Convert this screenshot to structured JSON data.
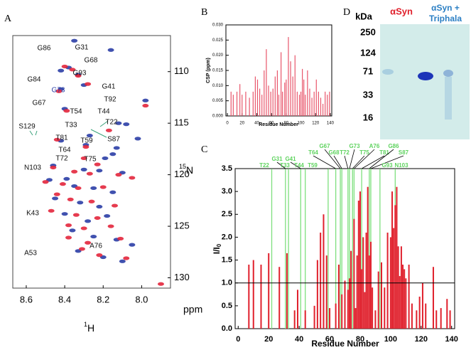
{
  "panels": [
    "A",
    "B",
    "C",
    "D"
  ],
  "chart_data": [
    {
      "type": "scatter",
      "xlabel": "ppm",
      "xnucleus_mass": "1",
      "xnucleus": "H",
      "ynucleus_mass": "15",
      "ynucleus": "N",
      "xlim": [
        8.67,
        7.85
      ],
      "ylim": [
        131,
        106.5
      ],
      "xticks": [
        {
          "value": 8.6,
          "label": "8.6"
        },
        {
          "value": 8.4,
          "label": "8.4"
        },
        {
          "value": 8.2,
          "label": "8.2"
        },
        {
          "value": 8.0,
          "label": "8.0"
        }
      ],
      "yticks": [
        110,
        115,
        120,
        125,
        130
      ],
      "peak_labels": [
        "G86",
        "G31",
        "G68",
        "G93",
        "G84",
        "G73",
        "G41",
        "T92",
        "G67",
        "T54",
        "T44",
        "T33",
        "T22",
        "S129",
        "S87",
        "T59",
        "T81",
        "T64",
        "T72",
        "T75",
        "N103",
        "K43",
        "A76",
        "A53"
      ],
      "series": [
        {
          "color": "#2b3ea6",
          "x": [
            8.35,
            8.16,
            8.38,
            8.42,
            8.33,
            8.3,
            8.42,
            7.98,
            8.4,
            8.12,
            8.27,
            8.13,
            8.02,
            8.08,
            8.15,
            8.19,
            8.46,
            8.3,
            8.22,
            8.1,
            8.48,
            8.39,
            8.35,
            8.25,
            8.15,
            8.45,
            8.32,
            8.22,
            8.4,
            8.28,
            8.18,
            8.36,
            8.25,
            8.13,
            8.05,
            8.33,
            8.2,
            8.1,
            8.42,
            8.29
          ],
          "values": [
            107.0,
            107.9,
            109.6,
            109.9,
            110.3,
            111.3,
            111.7,
            112.8,
            113.6,
            115.0,
            116.2,
            117.4,
            116.5,
            115.1,
            118.0,
            118.4,
            119.1,
            119.5,
            119.6,
            119.8,
            120.5,
            120.4,
            121.1,
            121.3,
            121.7,
            122.3,
            122.7,
            123.1,
            123.8,
            124.5,
            124.0,
            125.4,
            126.0,
            126.3,
            126.8,
            127.4,
            128.0,
            128.4,
            116.7,
            117.1
          ]
        },
        {
          "color": "#e3263c",
          "x": [
            8.4,
            8.36,
            8.33,
            8.28,
            8.43,
            7.98,
            8.39,
            8.17,
            8.3,
            8.23,
            8.46,
            8.35,
            8.27,
            8.12,
            8.5,
            8.41,
            8.33,
            8.2,
            8.05,
            8.44,
            8.37,
            8.26,
            8.14,
            8.47,
            8.34,
            8.23,
            8.38,
            8.3,
            8.16,
            8.38,
            8.28,
            8.11,
            8.31,
            8.22,
            8.08,
            7.9,
            8.44,
            8.29
          ],
          "values": [
            109.5,
            109.8,
            110.4,
            111.2,
            111.9,
            113.3,
            113.8,
            115.7,
            118.4,
            119.0,
            119.3,
            119.7,
            119.9,
            120.0,
            120.7,
            120.9,
            121.3,
            121.2,
            120.3,
            121.9,
            122.4,
            122.6,
            123.0,
            123.5,
            123.9,
            124.2,
            124.9,
            125.2,
            125.0,
            126.1,
            126.6,
            126.2,
            127.2,
            127.8,
            128.1,
            130.6,
            116.6,
            117.3
          ]
        }
      ]
    },
    {
      "type": "bar",
      "xlabel": "Residue Number",
      "ylabel": "CSP (ppm)",
      "color": "#e8566b",
      "xlim": [
        -2,
        142
      ],
      "ylim": [
        0,
        0.03
      ],
      "xticks": [
        0,
        20,
        40,
        60,
        80,
        100,
        120,
        140
      ],
      "yticks": [
        {
          "value": 0,
          "label": "0.000"
        },
        {
          "value": 0.005,
          "label": "0.005"
        },
        {
          "value": 0.01,
          "label": "0.010"
        },
        {
          "value": 0.015,
          "label": "0.015"
        },
        {
          "value": 0.02,
          "label": "0.020"
        },
        {
          "value": 0.025,
          "label": "0.025"
        },
        {
          "value": 0.03,
          "label": "0.030"
        }
      ],
      "x": [
        5,
        8,
        13,
        17,
        20,
        25,
        30,
        35,
        38,
        41,
        44,
        47,
        50,
        53,
        56,
        59,
        62,
        65,
        68,
        70,
        73,
        75,
        78,
        80,
        83,
        86,
        89,
        92,
        95,
        98,
        100,
        102,
        104,
        106,
        109,
        112,
        115,
        118,
        121,
        124,
        127,
        130,
        133,
        136,
        139
      ],
      "values": [
        0.008,
        0.007,
        0.008,
        0.0105,
        0.007,
        0.008,
        0.006,
        0.008,
        0.013,
        0.012,
        0.009,
        0.007,
        0.015,
        0.022,
        0.01,
        0.008,
        0.009,
        0.013,
        0.015,
        0.007,
        0.021,
        0.008,
        0.011,
        0.012,
        0.026,
        0.018,
        0.013,
        0.02,
        0.008,
        0.007,
        0.008,
        0.0155,
        0.012,
        0.007,
        0.015,
        0.009,
        0.006,
        0.008,
        0.012,
        0.008,
        0.006,
        0.004,
        0.008,
        0.007,
        0.008
      ]
    },
    {
      "type": "bar",
      "xlabel": "Residue Number",
      "ylabel": "I/I",
      "ylabel_sub": "0",
      "color": "#e0202c",
      "xlim": [
        -2,
        142
      ],
      "ylim": [
        0,
        3.5
      ],
      "hline": 1.0,
      "xticks": [
        0,
        20,
        40,
        60,
        80,
        100,
        120,
        140
      ],
      "yticks": [
        {
          "value": 0,
          "label": "0.0"
        },
        {
          "value": 0.5,
          "label": "0.5"
        },
        {
          "value": 1,
          "label": "1.0"
        },
        {
          "value": 1.5,
          "label": "1.5"
        },
        {
          "value": 2,
          "label": "2.0"
        },
        {
          "value": 2.5,
          "label": "2.5"
        },
        {
          "value": 3,
          "label": "3.0"
        },
        {
          "value": 3.5,
          "label": "3.5"
        }
      ],
      "x": [
        7,
        10,
        15,
        20,
        27,
        32,
        37,
        39,
        44,
        50,
        52,
        54,
        56,
        58,
        60,
        64,
        66,
        68,
        70,
        72,
        73,
        74,
        76,
        77,
        78,
        79,
        80,
        81,
        82,
        83,
        84,
        85,
        86,
        87,
        88,
        90,
        92,
        94,
        96,
        98,
        100,
        101,
        102,
        103,
        104,
        105,
        106,
        107,
        108,
        109,
        110,
        112,
        114,
        117,
        119,
        121,
        123,
        128,
        130,
        133,
        137,
        139
      ],
      "values": [
        1.4,
        1.5,
        1.4,
        1.65,
        1.35,
        1.65,
        0.4,
        0.85,
        0.4,
        0.5,
        1.5,
        2.1,
        2.5,
        1.6,
        0.45,
        0.55,
        1.4,
        0.75,
        1.05,
        0.85,
        1.1,
        1.7,
        2.4,
        0.45,
        1.6,
        2.8,
        3.0,
        1.3,
        2.0,
        0.8,
        2.1,
        3.1,
        1.6,
        1.9,
        0.9,
        0.4,
        1.25,
        1.45,
        0.9,
        2.1,
        2.0,
        3.0,
        2.2,
        2.7,
        3.1,
        1.8,
        1.15,
        1.8,
        1.4,
        1.3,
        1.1,
        1.4,
        0.55,
        0.4,
        0.7,
        1.0,
        0.55,
        1.35,
        0.4,
        0.45,
        0.65,
        0.4
      ],
      "annotations": [
        {
          "x": 22,
          "label": "T22"
        },
        {
          "x": 31,
          "label": "G31"
        },
        {
          "x": 33,
          "label": "T33"
        },
        {
          "x": 41,
          "label": "G41"
        },
        {
          "x": 44,
          "label": "T44"
        },
        {
          "x": 59,
          "label": "T59"
        },
        {
          "x": 64,
          "label": "T64"
        },
        {
          "x": 67,
          "label": "G67"
        },
        {
          "x": 68,
          "label": "G68"
        },
        {
          "x": 72,
          "label": "T72"
        },
        {
          "x": 73,
          "label": "G73"
        },
        {
          "x": 75,
          "label": "T75"
        },
        {
          "x": 76,
          "label": "A76"
        },
        {
          "x": 81,
          "label": "T81"
        },
        {
          "x": 86,
          "label": "G86"
        },
        {
          "x": 87,
          "label": "S87"
        },
        {
          "x": 93,
          "label": "G93"
        },
        {
          "x": 103,
          "label": "N103"
        }
      ]
    }
  ],
  "gel": {
    "units": "kDa",
    "ladder": [
      250,
      124,
      71,
      33,
      16
    ],
    "lane1": "αSyn",
    "lane2_line1": "αSyn +",
    "lane2_line2": "Triphala"
  }
}
